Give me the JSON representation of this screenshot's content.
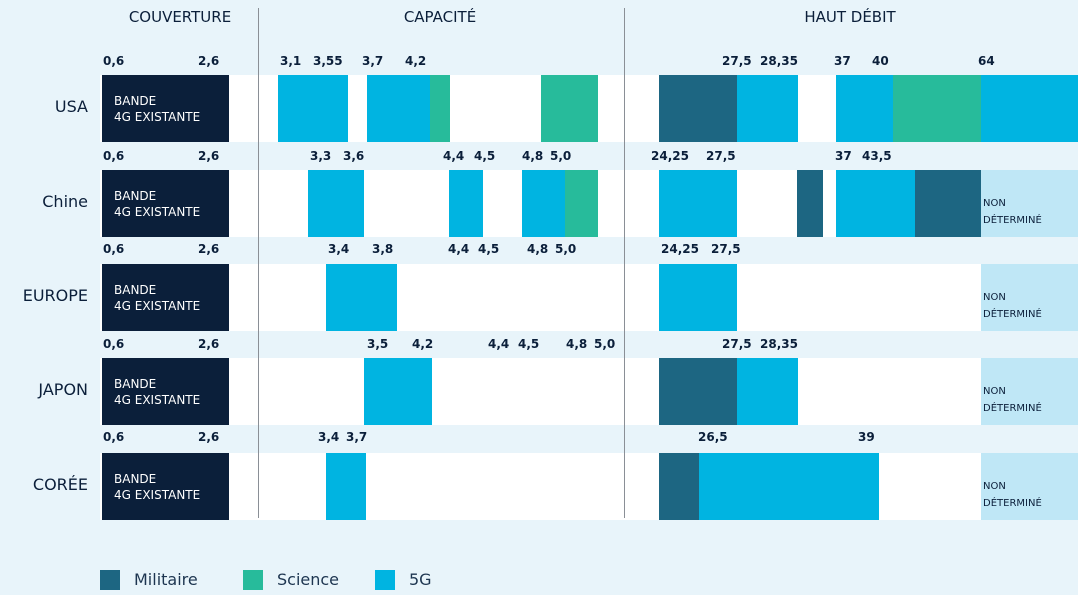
{
  "headers": [
    "COUVERTURE",
    "CAPACITÉ",
    "HAUT DÉBIT"
  ],
  "rows": [
    {
      "name": "USA",
      "box": [
        "BANDE",
        "4G EXISTANTE"
      ],
      "labels": [
        "0,6",
        "2,6",
        "3,1",
        "3,55",
        "3,7",
        "4,2",
        "27,5",
        "28,35",
        "37",
        "40",
        "64"
      ]
    },
    {
      "name": "Chine",
      "box": [
        "BANDE",
        "4G EXISTANTE"
      ],
      "labels": [
        "0,6",
        "2,6",
        "3,3",
        "3,6",
        "4,4",
        "4,5",
        "4,8",
        "5,0",
        "24,25",
        "27,5",
        "37",
        "43,5"
      ],
      "note": [
        "NON",
        "DÉTERMINÉ"
      ]
    },
    {
      "name": "EUROPE",
      "box": [
        "BANDE",
        "4G EXISTANTE"
      ],
      "labels": [
        "0,6",
        "2,6",
        "3,4",
        "3,8",
        "4,4",
        "4,5",
        "4,8",
        "5,0",
        "24,25",
        "27,5"
      ],
      "note": [
        "NON",
        "DÉTERMINÉ"
      ]
    },
    {
      "name": "JAPON",
      "box": [
        "BANDE",
        "4G EXISTANTE"
      ],
      "labels": [
        "0,6",
        "2,6",
        "3,5",
        "4,2",
        "4,4",
        "4,5",
        "4,8",
        "5,0",
        "27,5",
        "28,35"
      ],
      "note": [
        "NON",
        "DÉTERMINÉ"
      ]
    },
    {
      "name": "CORÉE",
      "box": [
        "BANDE",
        "4G EXISTANTE"
      ],
      "labels": [
        "0,6",
        "2,6",
        "3,4",
        "3,7",
        "26,5",
        "39"
      ],
      "note": [
        "NON",
        "DÉTERMINÉ"
      ]
    }
  ],
  "legend": [
    {
      "name": "Militaire",
      "color": "#1d6682"
    },
    {
      "name": "Science",
      "color": "#27bb9b"
    },
    {
      "name": "5G",
      "color": "#00b4e1"
    }
  ]
}
